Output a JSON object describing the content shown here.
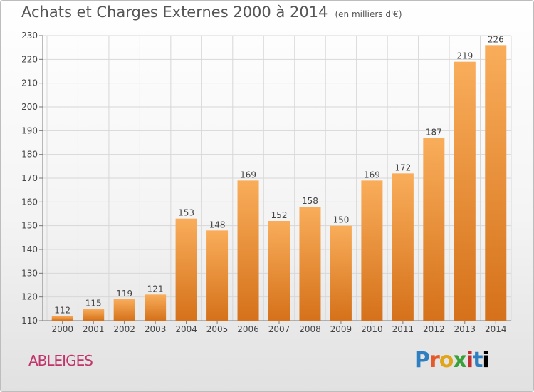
{
  "title": "Achats et Charges Externes 2000 à 2014",
  "title_unit": "(en milliers d'€)",
  "place": "ABLEIGES",
  "logo": [
    "P",
    "r",
    "o",
    "x",
    "i",
    "t",
    "i"
  ],
  "colors": {
    "bar_light": "#f7a64f",
    "bar_dark": "#d9761f",
    "grid": "#d7d7d7",
    "title": "#555555",
    "place": "#c0356b"
  },
  "chart_data": {
    "type": "bar",
    "title": "Achats et Charges Externes 2000 à 2014",
    "xlabel": "",
    "ylabel": "",
    "categories": [
      "2000",
      "2001",
      "2002",
      "2003",
      "2004",
      "2005",
      "2006",
      "2007",
      "2008",
      "2009",
      "2010",
      "2011",
      "2012",
      "2013",
      "2014"
    ],
    "values": [
      112,
      115,
      119,
      121,
      153,
      148,
      169,
      152,
      158,
      150,
      169,
      172,
      187,
      219,
      226
    ],
    "ylim": [
      110,
      230
    ],
    "yticks": [
      110,
      120,
      130,
      140,
      150,
      160,
      170,
      180,
      190,
      200,
      210,
      220,
      230
    ],
    "grid": true,
    "legend": "none"
  }
}
